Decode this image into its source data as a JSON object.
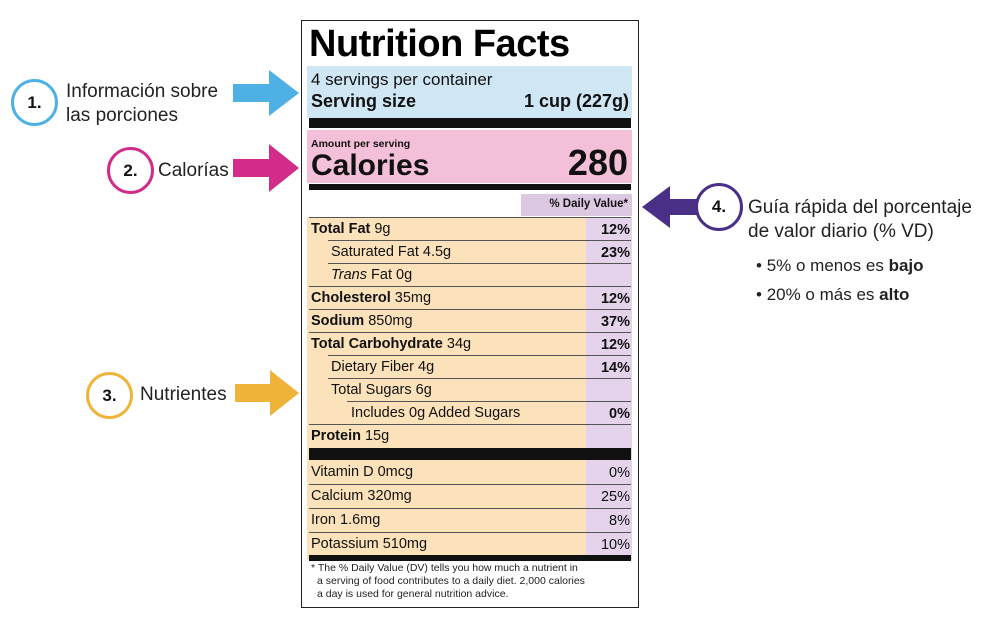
{
  "label": {
    "title": "Nutrition Facts",
    "servings_per_container": "4 servings per container",
    "serving_size_label": "Serving size",
    "serving_size_value": "1 cup (227g)",
    "amount_per_serving": "Amount per serving",
    "calories_label": "Calories",
    "calories_value": "280",
    "daily_value_header": "% Daily Value*",
    "nutrients": [
      {
        "bold": "Total Fat",
        "rest": " 9g",
        "pct": "12%"
      },
      {
        "bold": "",
        "rest": "Saturated Fat 4.5g",
        "pct": "23%"
      },
      {
        "italic": "Trans",
        "rest": " Fat 0g",
        "pct": ""
      },
      {
        "bold": "Cholesterol",
        "rest": " 35mg",
        "pct": "12%"
      },
      {
        "bold": "Sodium",
        "rest": " 850mg",
        "pct": "37%"
      },
      {
        "bold": "Total Carbohydrate",
        "rest": " 34g",
        "pct": "12%"
      },
      {
        "bold": "",
        "rest": "Dietary Fiber 4g",
        "pct": "14%"
      },
      {
        "bold": "",
        "rest": "Total Sugars 6g",
        "pct": ""
      },
      {
        "bold": "",
        "rest": "Includes 0g Added Sugars",
        "pct": "0%"
      },
      {
        "bold": "Protein",
        "rest": " 15g",
        "pct": ""
      }
    ],
    "vitamins": [
      {
        "name": "Vitamin D 0mcg",
        "pct": "0%"
      },
      {
        "name": "Calcium 320mg",
        "pct": "25%"
      },
      {
        "name": "Iron 1.6mg",
        "pct": "8%"
      },
      {
        "name": "Potassium 510mg",
        "pct": "10%"
      }
    ],
    "footnote_lines": [
      "* The % Daily Value (DV) tells you how much a nutrient in",
      "a serving of food contributes to a daily diet. 2,000 calories",
      "a day is used for general nutrition advice."
    ]
  },
  "annotations": [
    {
      "number": "1.",
      "text_line1": "Información sobre",
      "text_line2": "las porciones",
      "color": "#4fb0e6"
    },
    {
      "number": "2.",
      "text_line1": "Calorías",
      "color": "#d22c8a"
    },
    {
      "number": "3.",
      "text_line1": "Nutrientes",
      "color": "#f0b33a"
    },
    {
      "number": "4.",
      "text_line1": "Guía rápida del porcentaje",
      "text_line2": "de valor diario (% VD)",
      "color": "#4a2f86"
    }
  ],
  "dv_guide": [
    {
      "prefix": "5% o menos es ",
      "emphasis": "bajo"
    },
    {
      "prefix": "20% o más es ",
      "emphasis": "alto"
    }
  ]
}
